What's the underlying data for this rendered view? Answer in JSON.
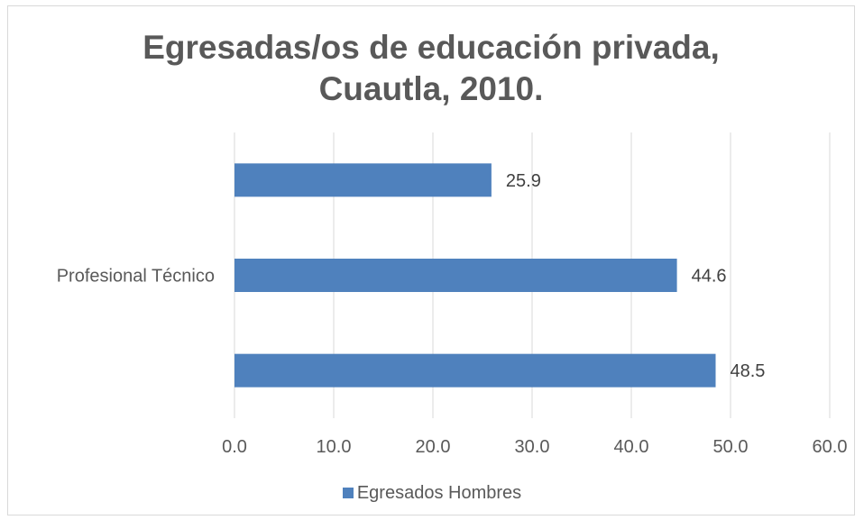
{
  "chart_data": {
    "type": "bar",
    "orientation": "horizontal",
    "title": "Egresadas/os de educación privada,\nCuautla, 2010.",
    "categories": [
      "",
      "Profesional Técnico",
      ""
    ],
    "series": [
      {
        "name": "Egresados Hombres",
        "values": [
          25.9,
          44.6,
          48.5
        ],
        "color": "#4f81bd"
      }
    ],
    "data_labels": [
      "25.9",
      "44.6",
      "48.5"
    ],
    "x_ticks": [
      "0.0",
      "10.0",
      "20.0",
      "30.0",
      "40.0",
      "50.0",
      "60.0"
    ],
    "xlim": [
      0,
      60
    ],
    "grid": true,
    "legend_position": "bottom"
  }
}
